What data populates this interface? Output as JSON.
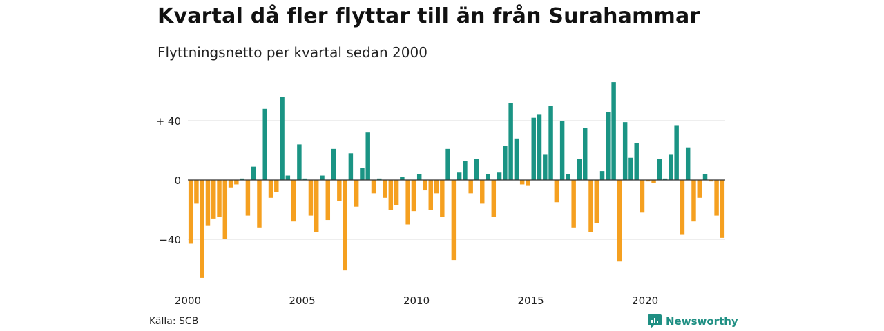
{
  "title": "Kvartal då fler flyttar till än från Surahammar",
  "subtitle": "Flyttningsnetto per kvartal sedan 2000",
  "source": "Källa: SCB",
  "brand": {
    "name": "Newsworthy",
    "icon": "newsworthy-logo-icon",
    "color": "#1f8f83"
  },
  "chart_data": {
    "type": "bar",
    "x_unit": "quarter",
    "x_start": "2000 Q1",
    "x_ticks": [
      "2000",
      "2005",
      "2010",
      "2015",
      "2020"
    ],
    "y_ticks": [
      "+ 40",
      "0",
      "−40"
    ],
    "y_tick_values": [
      40,
      0,
      -40
    ],
    "ylim": [
      -66,
      66
    ],
    "grid": "horizontal",
    "colors": {
      "positive": "#1a9484",
      "negative": "#f5a020",
      "zero_line": "#333333",
      "grid": "#dddddd"
    },
    "values": [
      -43,
      -16,
      -66,
      -31,
      -26,
      -25,
      -40,
      -5,
      -3,
      1,
      -24,
      9,
      -32,
      48,
      -12,
      -8,
      56,
      3,
      -28,
      24,
      1,
      -24,
      -35,
      3,
      -27,
      21,
      -14,
      -61,
      18,
      -18,
      8,
      32,
      -9,
      1,
      -12,
      -20,
      -17,
      2,
      -30,
      -21,
      4,
      -7,
      -20,
      -9,
      -25,
      21,
      -54,
      5,
      13,
      -9,
      14,
      -16,
      4,
      -25,
      5,
      23,
      52,
      28,
      -3,
      -4,
      42,
      44,
      17,
      50,
      -15,
      40,
      4,
      -32,
      14,
      35,
      -35,
      -29,
      6,
      46,
      66,
      -55,
      39,
      15,
      25,
      -22,
      -1,
      -2,
      14,
      1,
      17,
      37,
      -37,
      22,
      -28,
      -12,
      4,
      -1,
      -24,
      -39
    ]
  }
}
